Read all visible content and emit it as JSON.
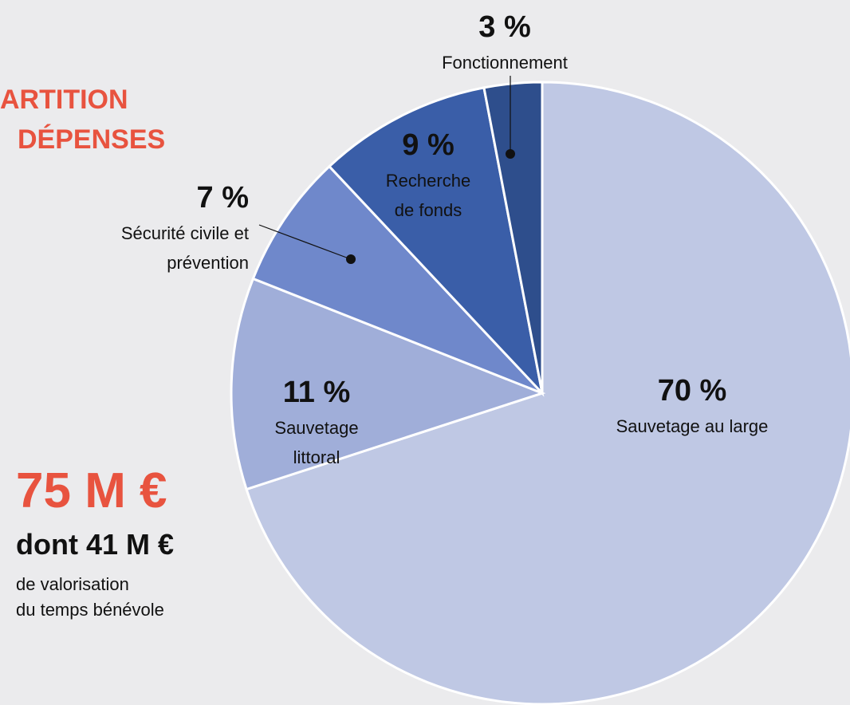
{
  "chart_data": {
    "type": "pie",
    "title": [
      "ARTITION",
      "DÉPENSES"
    ],
    "categories": [
      "Sauvetage au large",
      "Sauvetage\nlittoral",
      "Sécurité civile et\nprévention",
      "Recherche\nde fonds",
      "Fonctionnement"
    ],
    "values": [
      70,
      11,
      7,
      9,
      3
    ],
    "value_labels": [
      "70 %",
      "11 %",
      "7 %",
      "9 %",
      "3 %"
    ],
    "colors": [
      "#bfc8e4",
      "#a0aed9",
      "#6f88cb",
      "#3a5ea8",
      "#2e4e8c"
    ],
    "annotations": [
      "75 M €",
      "dont 41 M €",
      "de valorisation",
      "du temps bénévole"
    ]
  }
}
